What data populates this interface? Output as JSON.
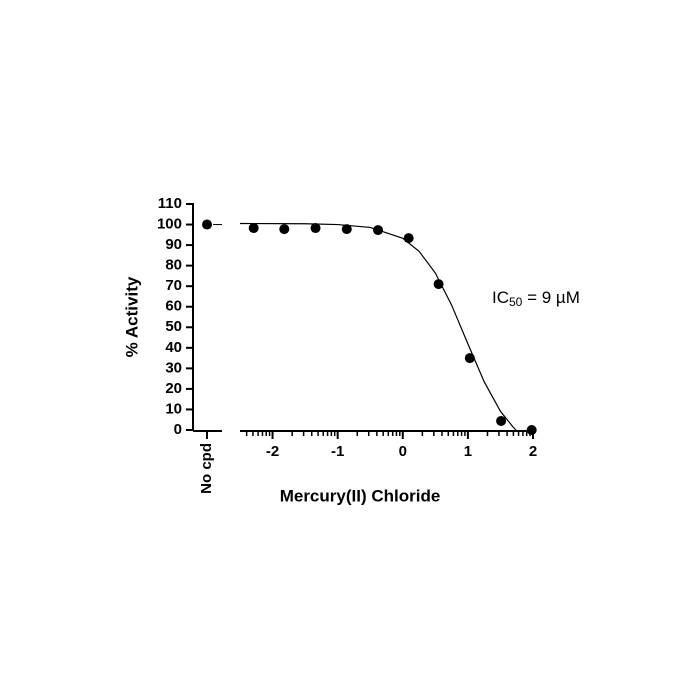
{
  "chart_data": {
    "type": "scatter",
    "x_label": "Mercury(II) Chloride",
    "y_label": "% Activity",
    "xlim": [
      -2.5,
      2
    ],
    "xticks": [
      -2,
      -1,
      0,
      1,
      2
    ],
    "minor_ticks": true,
    "ylim": [
      0,
      110
    ],
    "yticks": [
      0,
      10,
      20,
      30,
      40,
      50,
      60,
      70,
      80,
      90,
      100,
      110
    ],
    "control": {
      "label": "No cpd",
      "value": 100
    },
    "series": [
      {
        "color": "#000000",
        "x": [
          -2.29,
          -1.82,
          -1.34,
          -0.86,
          -0.38,
          0.09,
          0.55,
          1.03,
          1.51,
          1.98
        ],
        "values": [
          98.3,
          97.8,
          98.3,
          97.8,
          97.3,
          93.4,
          71,
          35,
          4.4,
          0
        ]
      }
    ],
    "fit": {
      "color": "#000000",
      "x": [
        -2.5,
        -1.5,
        -1,
        -0.5,
        0,
        0.25,
        0.5,
        0.75,
        1,
        1.25,
        1.5,
        1.7,
        1.74
      ],
      "values": [
        100.5,
        100.4,
        100,
        98.6,
        93.3,
        87,
        76.4,
        60.8,
        41.9,
        23.5,
        9.1,
        1.2,
        0
      ]
    },
    "annotation": {
      "text": "IC",
      "sub": "50",
      "rest": " = 9 µM"
    }
  }
}
